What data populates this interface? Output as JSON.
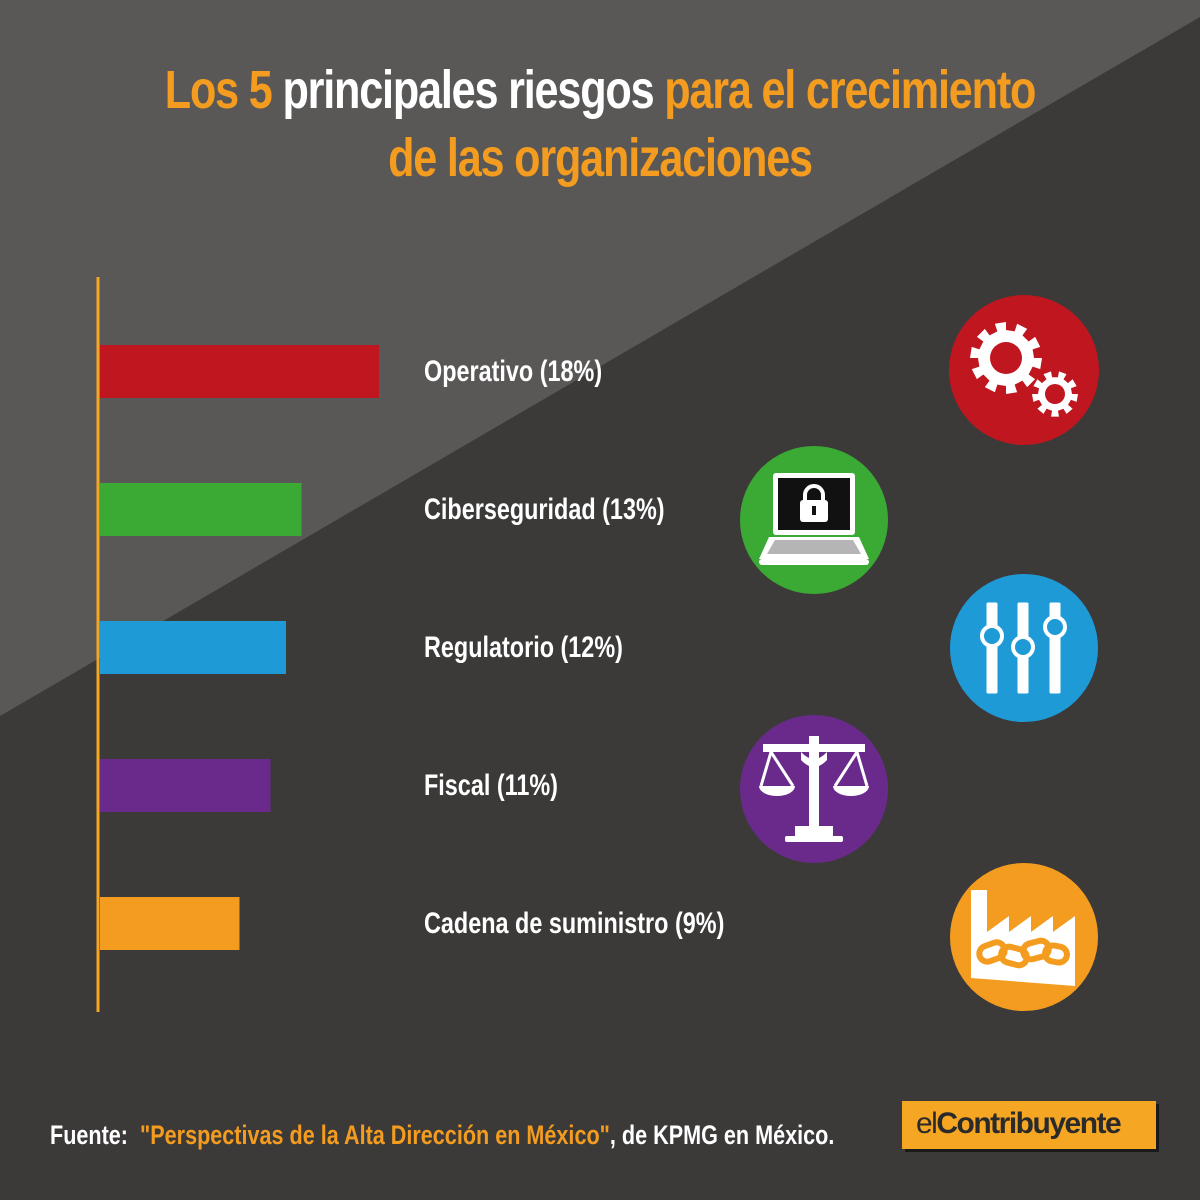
{
  "title": {
    "line1_a": "Los 5",
    "line1_b": "principales riesgos",
    "line1_c": "para el crecimiento",
    "line2": "de las organizaciones"
  },
  "chart_data": {
    "type": "bar",
    "orientation": "horizontal",
    "categories": [
      "Operativo",
      "Ciberseguridad",
      "Regulatorio",
      "Fiscal",
      "Cadena de suministro"
    ],
    "values": [
      18,
      13,
      12,
      11,
      9
    ],
    "unit": "%",
    "labels": [
      "Operativo (18%)",
      "Ciberseguridad (13%)",
      "Regulatorio (12%)",
      "Fiscal (11%)",
      "Cadena de suministro (9%)"
    ],
    "colors": [
      "#c0161f",
      "#3aaa35",
      "#1e9ad6",
      "#6a2a8c",
      "#f39c1f"
    ],
    "icons": [
      "gears-icon",
      "laptop-lock-icon",
      "sliders-icon",
      "scales-icon",
      "factory-chain-icon"
    ],
    "axis_color": "#f5a623",
    "grid": false,
    "legend": "none"
  },
  "footer": {
    "lead": "Fuente:",
    "source": "\"Perspectivas de la Alta Dirección en México\"",
    "rest": ", de KPMG en México."
  },
  "logo": {
    "part1": "el",
    "part2": "Contribuyente"
  },
  "colors": {
    "background_dark": "#3c3a39",
    "background_light": "#5a5857",
    "accent": "#f39c1f"
  }
}
